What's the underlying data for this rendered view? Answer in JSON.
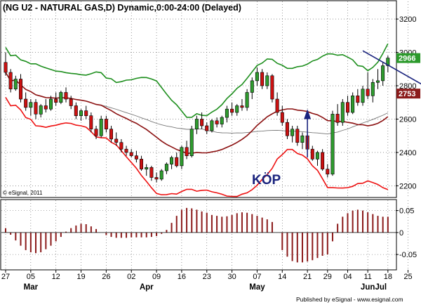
{
  "chart_data": [
    {
      "type": "candlestick",
      "title": "(NG U2 - NATURAL GAS,D) Dynamic,0:00-24:00 (Delayed)",
      "copyright": "© eSignal, 2011",
      "annotation": "KÖP",
      "y_ticks": [
        2200,
        2400,
        2600,
        2800,
        3000,
        3200
      ],
      "ylim": [
        2130,
        3310
      ],
      "last_price": "2966",
      "last_price_color": "#2c9a2c",
      "band_value": "2753",
      "band_value_color": "#8b1a1a",
      "up_color": "#2e9b2e",
      "down_color": "#cc1111",
      "band_colors": {
        "upper": "#1e8f1e",
        "middle": "#8b1010",
        "lower": "#ee1111",
        "ma": "#777777"
      },
      "ohlc": [
        [
          2940,
          3000,
          2860,
          2880
        ],
        [
          2880,
          2900,
          2760,
          2780
        ],
        [
          2780,
          2860,
          2770,
          2840
        ],
        [
          2840,
          2870,
          2700,
          2720
        ],
        [
          2720,
          2760,
          2650,
          2670
        ],
        [
          2670,
          2720,
          2620,
          2700
        ],
        [
          2700,
          2720,
          2600,
          2630
        ],
        [
          2630,
          2690,
          2610,
          2680
        ],
        [
          2680,
          2720,
          2640,
          2660
        ],
        [
          2660,
          2740,
          2650,
          2720
        ],
        [
          2720,
          2760,
          2680,
          2700
        ],
        [
          2700,
          2770,
          2690,
          2760
        ],
        [
          2760,
          2790,
          2700,
          2720
        ],
        [
          2720,
          2740,
          2660,
          2680
        ],
        [
          2680,
          2700,
          2600,
          2620
        ],
        [
          2620,
          2660,
          2590,
          2650
        ],
        [
          2650,
          2680,
          2600,
          2620
        ],
        [
          2620,
          2640,
          2520,
          2540
        ],
        [
          2540,
          2560,
          2480,
          2500
        ],
        [
          2500,
          2620,
          2490,
          2600
        ],
        [
          2600,
          2620,
          2520,
          2540
        ],
        [
          2540,
          2560,
          2460,
          2480
        ],
        [
          2480,
          2520,
          2440,
          2460
        ],
        [
          2460,
          2480,
          2400,
          2420
        ],
        [
          2420,
          2440,
          2380,
          2400
        ],
        [
          2400,
          2420,
          2370,
          2380
        ],
        [
          2380,
          2410,
          2340,
          2360
        ],
        [
          2360,
          2380,
          2290,
          2300
        ],
        [
          2300,
          2330,
          2260,
          2310
        ],
        [
          2310,
          2320,
          2230,
          2250
        ],
        [
          2250,
          2280,
          2220,
          2240
        ],
        [
          2240,
          2300,
          2230,
          2290
        ],
        [
          2290,
          2340,
          2270,
          2330
        ],
        [
          2330,
          2380,
          2300,
          2370
        ],
        [
          2370,
          2400,
          2310,
          2320
        ],
        [
          2320,
          2440,
          2300,
          2430
        ],
        [
          2430,
          2470,
          2360,
          2380
        ],
        [
          2380,
          2560,
          2370,
          2540
        ],
        [
          2540,
          2620,
          2510,
          2600
        ],
        [
          2600,
          2640,
          2540,
          2560
        ],
        [
          2560,
          2580,
          2510,
          2530
        ],
        [
          2530,
          2600,
          2520,
          2590
        ],
        [
          2590,
          2610,
          2550,
          2570
        ],
        [
          2570,
          2620,
          2550,
          2610
        ],
        [
          2610,
          2680,
          2580,
          2660
        ],
        [
          2660,
          2700,
          2620,
          2640
        ],
        [
          2640,
          2690,
          2620,
          2680
        ],
        [
          2680,
          2720,
          2650,
          2670
        ],
        [
          2670,
          2780,
          2650,
          2760
        ],
        [
          2760,
          2850,
          2720,
          2830
        ],
        [
          2830,
          2910,
          2800,
          2880
        ],
        [
          2880,
          2900,
          2780,
          2800
        ],
        [
          2800,
          2880,
          2780,
          2860
        ],
        [
          2860,
          2870,
          2700,
          2720
        ],
        [
          2720,
          2760,
          2620,
          2640
        ],
        [
          2640,
          2680,
          2560,
          2580
        ],
        [
          2580,
          2600,
          2480,
          2500
        ],
        [
          2500,
          2560,
          2460,
          2540
        ],
        [
          2540,
          2560,
          2440,
          2460
        ],
        [
          2460,
          2520,
          2420,
          2500
        ],
        [
          2500,
          2530,
          2400,
          2420
        ],
        [
          2420,
          2440,
          2350,
          2360
        ],
        [
          2360,
          2410,
          2320,
          2400
        ],
        [
          2400,
          2420,
          2290,
          2300
        ],
        [
          2300,
          2330,
          2250,
          2270
        ],
        [
          2270,
          2650,
          2260,
          2630
        ],
        [
          2630,
          2690,
          2560,
          2580
        ],
        [
          2580,
          2720,
          2560,
          2700
        ],
        [
          2700,
          2740,
          2620,
          2640
        ],
        [
          2640,
          2760,
          2630,
          2740
        ],
        [
          2740,
          2780,
          2680,
          2700
        ],
        [
          2700,
          2800,
          2680,
          2780
        ],
        [
          2780,
          2880,
          2720,
          2740
        ],
        [
          2740,
          2840,
          2700,
          2820
        ],
        [
          2820,
          2900,
          2780,
          2830
        ],
        [
          2830,
          2940,
          2800,
          2920
        ],
        [
          2920,
          2980,
          2880,
          2966
        ]
      ],
      "indicator": {
        "ylim": [
          -0.085,
          0.075
        ],
        "y_ticks": [
          0.05,
          0,
          -0.05
        ],
        "y_tick_labels": [
          "0.05",
          "0",
          "-0.05"
        ],
        "values": [
          0.01,
          -0.005,
          -0.018,
          -0.03,
          -0.04,
          -0.045,
          -0.047,
          -0.045,
          -0.038,
          -0.03,
          -0.02,
          -0.01,
          0.002,
          0.01,
          0.016,
          0.02,
          0.019,
          0.014,
          0.008,
          0.0,
          -0.006,
          -0.01,
          -0.012,
          -0.012,
          -0.012,
          -0.011,
          -0.011,
          -0.011,
          -0.011,
          -0.01,
          -0.008,
          -0.003,
          0.006,
          0.022,
          0.038,
          0.052,
          0.056,
          0.055,
          0.052,
          0.048,
          0.045,
          0.04,
          0.038,
          0.036,
          0.037,
          0.04,
          0.044,
          0.046,
          0.045,
          0.042,
          0.038,
          0.034,
          0.03,
          0.024,
          0.0,
          -0.04,
          -0.055,
          -0.065,
          -0.068,
          -0.068,
          -0.066,
          -0.063,
          -0.058,
          -0.053,
          -0.05,
          -0.02,
          0.02,
          0.036,
          0.044,
          0.05,
          0.052,
          0.05,
          0.046,
          0.042,
          0.038,
          0.036,
          0.036
        ]
      },
      "x_tick_labels": [
        "27",
        "05",
        "12",
        "19",
        "26",
        "02",
        "09",
        "16",
        "23",
        "30",
        "07",
        "14",
        "21",
        "29",
        "04",
        "11",
        "18",
        "25",
        "02"
      ],
      "x_tick_index": [
        0,
        5,
        10,
        15,
        20,
        25,
        30,
        35,
        40,
        45,
        50,
        55,
        60,
        64,
        68,
        72,
        76,
        80,
        84
      ],
      "month_labels": [
        {
          "label": "Mar",
          "index": 5
        },
        {
          "label": "Apr",
          "index": 28
        },
        {
          "label": "May",
          "index": 50
        },
        {
          "label": "Jun",
          "index": 72
        },
        {
          "label": "Jul",
          "index": 90
        }
      ],
      "footer": "Published by eSignal - www.esignal.com"
    }
  ]
}
